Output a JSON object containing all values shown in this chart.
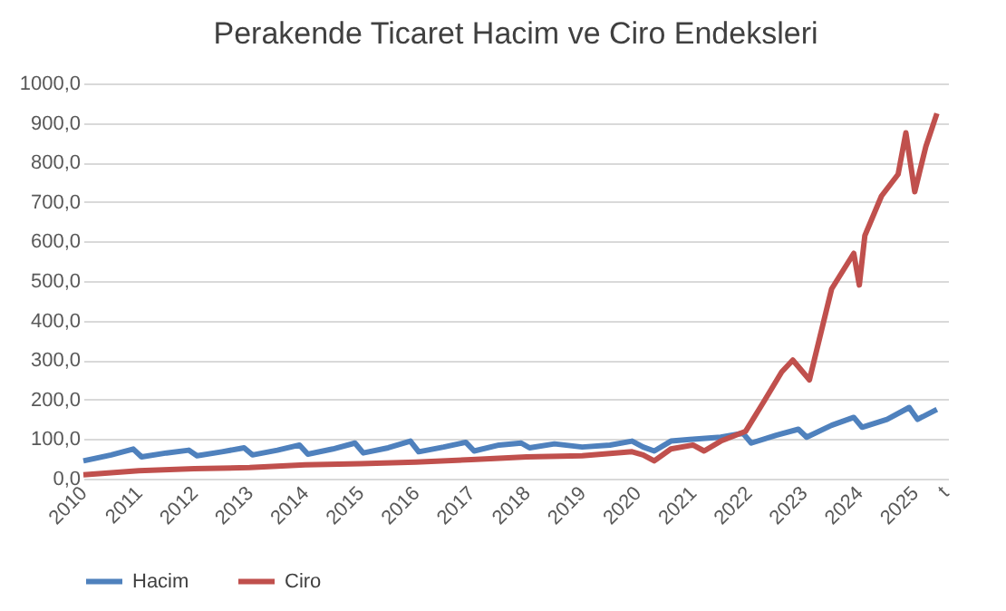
{
  "chart_data": {
    "type": "line",
    "title": "Perakende Ticaret Hacim ve Ciro Endeksleri",
    "xlim": [
      2010,
      2025.6
    ],
    "xticks": [
      2010,
      2011,
      2012,
      2013,
      2014,
      2015,
      2016,
      2017,
      2018,
      2019,
      2020,
      2021,
      2022,
      2023,
      2024,
      2025,
      {
        "value": 2025.55,
        "label": "t"
      }
    ],
    "ylim": [
      0,
      1000
    ],
    "yticks": [
      {
        "value": 0,
        "label": "0,0"
      },
      {
        "value": 100,
        "label": "100,0"
      },
      {
        "value": 200,
        "label": "200,0"
      },
      {
        "value": 300,
        "label": "300,0"
      },
      {
        "value": 400,
        "label": "400,0"
      },
      {
        "value": 500,
        "label": "500,0"
      },
      {
        "value": 600,
        "label": "600,0"
      },
      {
        "value": 700,
        "label": "700,0"
      },
      {
        "value": 800,
        "label": "800,0"
      },
      {
        "value": 900,
        "label": "900,0"
      },
      {
        "value": 1000,
        "label": "1000,0"
      }
    ],
    "grid": "y",
    "legend": "bottom",
    "marker": "none",
    "line_style": "solid",
    "series": [
      {
        "name": "Hacim",
        "color": "#4f81bd",
        "x": [
          2010,
          2010.5,
          2010.9,
          2011.05,
          2011.5,
          2011.9,
          2012.05,
          2012.5,
          2012.9,
          2013.05,
          2013.5,
          2013.9,
          2014.05,
          2014.5,
          2014.9,
          2015.05,
          2015.5,
          2015.9,
          2016.05,
          2016.5,
          2016.9,
          2017.05,
          2017.5,
          2017.9,
          2018.05,
          2018.5,
          2019,
          2019.5,
          2019.9,
          2020.1,
          2020.3,
          2020.6,
          2021,
          2021.5,
          2021.9,
          2022.05,
          2022.5,
          2022.9,
          2023.05,
          2023.5,
          2023.9,
          2024.05,
          2024.5,
          2024.9,
          2025.05,
          2025.4
        ],
        "values": [
          45,
          60,
          75,
          55,
          65,
          72,
          58,
          68,
          78,
          60,
          72,
          85,
          62,
          75,
          90,
          65,
          78,
          95,
          68,
          80,
          92,
          70,
          85,
          90,
          78,
          88,
          80,
          85,
          95,
          80,
          70,
          95,
          100,
          105,
          115,
          90,
          110,
          125,
          105,
          135,
          155,
          130,
          150,
          180,
          150,
          175
        ]
      },
      {
        "name": "Ciro",
        "color": "#c0504d",
        "x": [
          2010,
          2011,
          2012,
          2013,
          2014,
          2015,
          2016,
          2017,
          2018,
          2019,
          2019.9,
          2020.1,
          2020.3,
          2020.6,
          2021,
          2021.2,
          2021.5,
          2021.95,
          2022.3,
          2022.6,
          2022.8,
          2023.1,
          2023.5,
          2023.9,
          2024.0,
          2024.1,
          2024.4,
          2024.7,
          2024.84,
          2025.0,
          2025.2,
          2025.4
        ],
        "values": [
          10,
          20,
          25,
          28,
          35,
          38,
          42,
          48,
          55,
          58,
          68,
          60,
          45,
          75,
          85,
          70,
          95,
          120,
          200,
          270,
          300,
          250,
          480,
          570,
          490,
          615,
          715,
          770,
          875,
          726,
          840,
          924
        ]
      }
    ]
  }
}
